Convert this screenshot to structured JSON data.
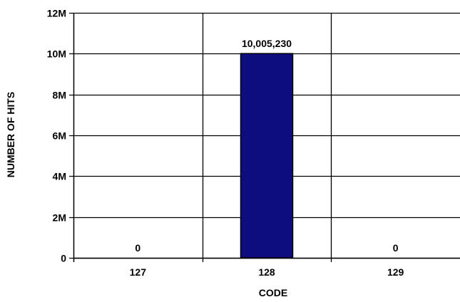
{
  "chart_data": {
    "type": "bar",
    "categories": [
      "127",
      "128",
      "129"
    ],
    "values": [
      0,
      10005230,
      0
    ],
    "data_labels": [
      "0",
      "10,005,230",
      "0"
    ],
    "xlabel": "CODE",
    "ylabel": "NUMBER OF HITS",
    "ylim": [
      0,
      12000000
    ],
    "y_ticks": [
      0,
      2000000,
      4000000,
      6000000,
      8000000,
      10000000,
      12000000
    ],
    "y_tick_labels": [
      "0",
      "2M",
      "4M",
      "6M",
      "8M",
      "10M",
      "12M"
    ],
    "grid": true,
    "legend": "none",
    "bar_color": "#0d0d80"
  }
}
